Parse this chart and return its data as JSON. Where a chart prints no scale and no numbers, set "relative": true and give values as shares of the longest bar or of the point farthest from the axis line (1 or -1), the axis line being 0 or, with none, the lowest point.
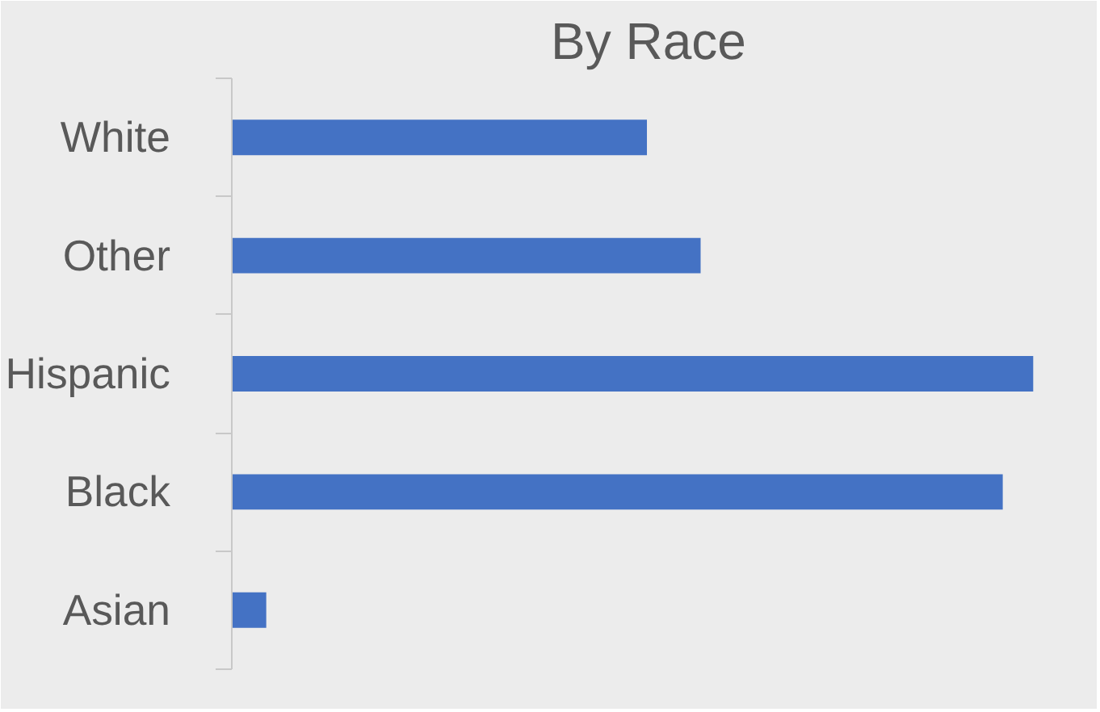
{
  "chart_data": {
    "type": "bar",
    "title": "By Race",
    "orientation": "horizontal",
    "relative": true,
    "categories": [
      "White",
      "Other",
      "Hispanic",
      "Black",
      "Asian"
    ],
    "values": [
      0.518,
      0.585,
      1,
      0.962,
      0.043
    ],
    "color": "#4472c4"
  }
}
